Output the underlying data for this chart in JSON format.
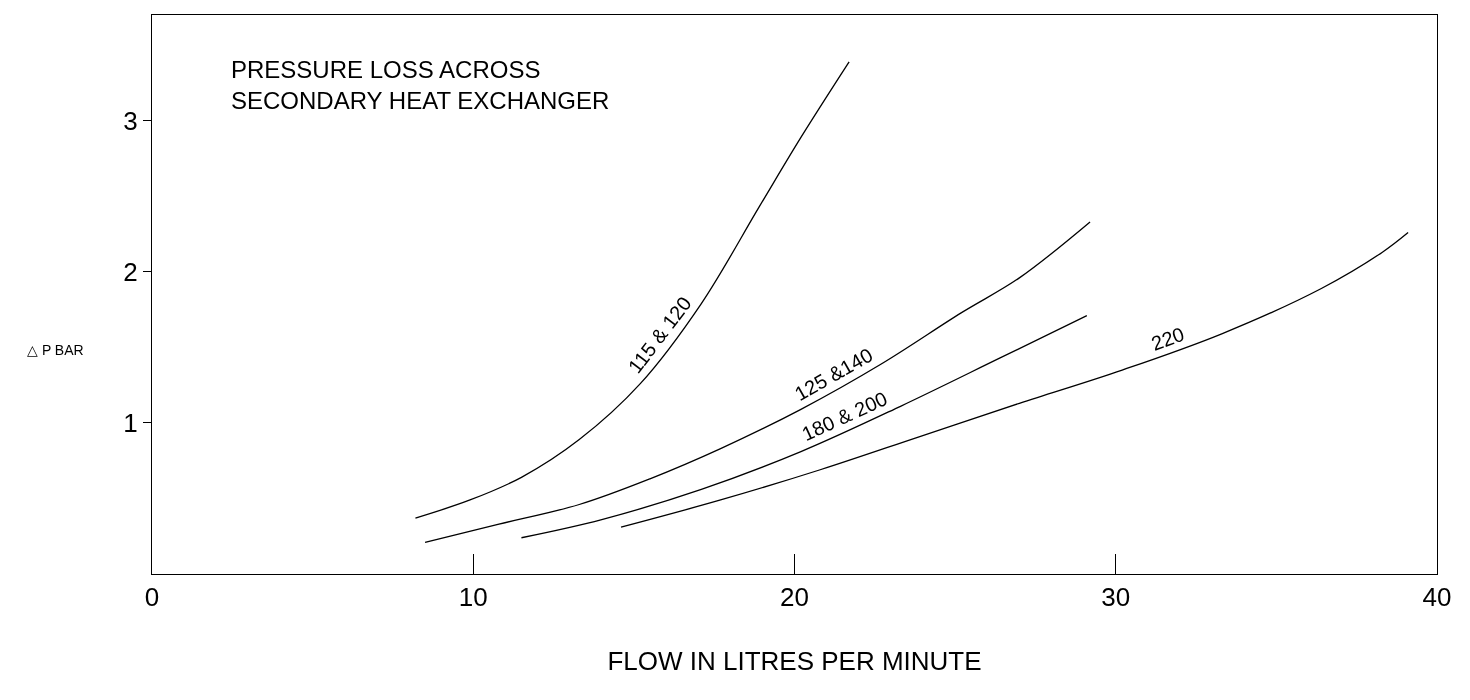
{
  "chart_data": {
    "type": "line",
    "title": "PRESSURE LOSS ACROSS\nSECONDARY HEAT EXCHANGER",
    "xlabel": "FLOW IN LITRES PER MINUTE",
    "ylabel": "△ P BAR",
    "series": [
      {
        "name": "115 & 120",
        "color": "#000000",
        "x": [
          8.2,
          9.9,
          11.5,
          13.3,
          15.2,
          17.1,
          18.9,
          20.2,
          21.7
        ],
        "values": [
          0.37,
          0.49,
          0.64,
          0.89,
          1.26,
          1.79,
          2.43,
          2.89,
          3.39
        ]
      },
      {
        "name": "125 &140",
        "color": "#000000",
        "x": [
          8.5,
          10.8,
          13.3,
          15.5,
          17.7,
          20.2,
          22.7,
          25.2,
          27.0,
          29.2
        ],
        "values": [
          0.21,
          0.33,
          0.46,
          0.63,
          0.83,
          1.09,
          1.39,
          1.73,
          1.96,
          2.33
        ]
      },
      {
        "name": "180 & 200",
        "color": "#000000",
        "x": [
          11.5,
          14.0,
          17.1,
          20.2,
          23.3,
          26.4,
          29.1
        ],
        "values": [
          0.24,
          0.36,
          0.56,
          0.81,
          1.11,
          1.43,
          1.71
        ]
      },
      {
        "name": "220",
        "color": "#000000",
        "x": [
          14.6,
          17.7,
          20.8,
          23.9,
          27.0,
          30.2,
          33.3,
          36.4,
          38.3,
          39.1
        ],
        "values": [
          0.31,
          0.49,
          0.69,
          0.91,
          1.13,
          1.35,
          1.59,
          1.89,
          2.13,
          2.26
        ]
      }
    ],
    "xlim": [
      0,
      40
    ],
    "xticks": [
      0,
      10,
      20,
      30,
      40
    ],
    "ylim": [
      0,
      3.7
    ],
    "yticks": [
      1,
      2,
      3
    ],
    "legend": false,
    "marker": "none",
    "line_style": "solid"
  }
}
